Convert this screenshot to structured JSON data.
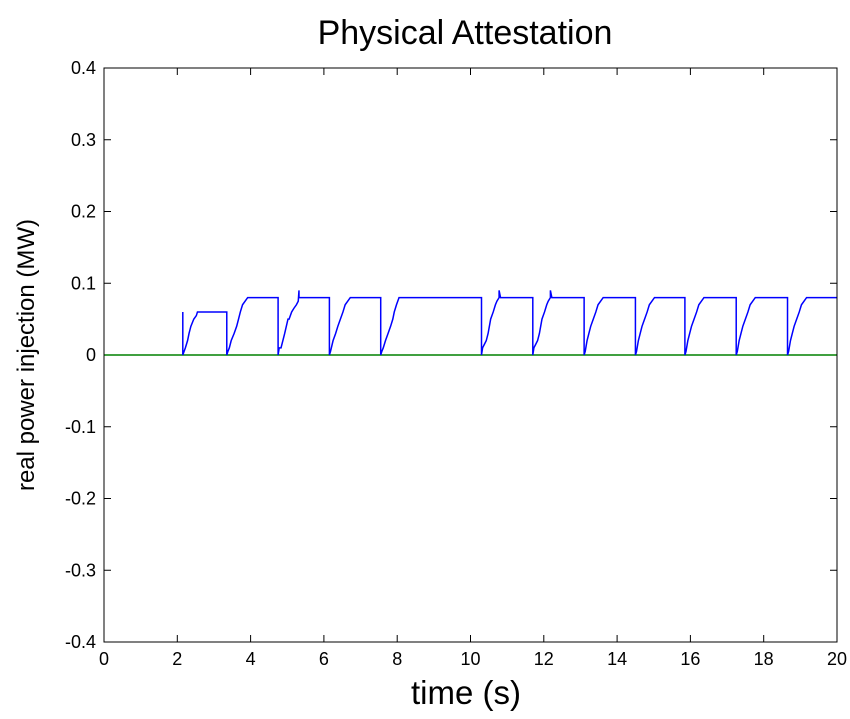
{
  "chart_data": {
    "type": "line",
    "title": "Physical Attestation",
    "xlabel": "time (s)",
    "ylabel": "real power injection (MW)",
    "xlim": [
      0,
      20
    ],
    "ylim": [
      -0.4,
      0.4
    ],
    "grid": false,
    "x_ticks": [
      0,
      2,
      4,
      6,
      8,
      10,
      12,
      14,
      16,
      18,
      20
    ],
    "x_tick_labels": [
      "0",
      "2",
      "4",
      "6",
      "8",
      "10",
      "12",
      "14",
      "16",
      "18",
      "20"
    ],
    "y_ticks": [
      -0.4,
      -0.3,
      -0.2,
      -0.1,
      0,
      0.1,
      0.2,
      0.3,
      0.4
    ],
    "y_tick_labels": [
      "-0.4",
      "-0.3",
      "-0.2",
      "-0.1",
      "0",
      "0.1",
      "0.2",
      "0.3",
      "0.4"
    ],
    "series": [
      {
        "color": "#0000ff",
        "x": [
          2.15,
          2.15,
          2.22,
          2.28,
          2.32,
          2.37,
          2.45,
          2.52,
          2.55,
          3.35,
          3.35,
          3.38,
          3.42,
          3.47,
          3.55,
          3.62,
          3.67,
          3.72,
          3.78,
          3.85,
          3.92,
          3.95,
          4.75,
          4.75,
          4.78,
          4.83,
          4.88,
          4.93,
          5.02,
          5.05,
          5.12,
          5.18,
          5.25,
          5.3,
          5.32,
          5.32,
          5.35,
          6.15,
          6.15,
          6.18,
          6.25,
          6.32,
          6.38,
          6.45,
          6.52,
          6.58,
          6.65,
          6.72,
          7.55,
          7.55,
          7.58,
          7.62,
          7.68,
          7.75,
          7.82,
          7.88,
          7.92,
          7.95,
          7.98,
          8.05,
          10.3,
          10.3,
          10.33,
          10.38,
          10.43,
          10.48,
          10.55,
          10.62,
          10.68,
          10.72,
          10.78,
          10.78,
          10.82,
          11.7,
          11.7,
          11.73,
          11.78,
          11.83,
          11.88,
          11.95,
          12.02,
          12.08,
          12.12,
          12.18,
          12.18,
          12.22,
          13.1,
          13.1,
          13.13,
          13.18,
          13.23,
          13.28,
          13.35,
          13.42,
          13.48,
          13.55,
          13.62,
          14.5,
          14.5,
          14.53,
          14.58,
          14.63,
          14.68,
          14.75,
          14.82,
          14.88,
          14.95,
          15.02,
          15.85,
          15.85,
          15.88,
          15.93,
          15.98,
          16.03,
          16.1,
          16.17,
          16.23,
          16.3,
          16.37,
          17.25,
          17.25,
          17.28,
          17.33,
          17.38,
          17.43,
          17.5,
          17.57,
          17.63,
          17.7,
          17.77,
          18.65,
          18.65,
          18.68,
          18.73,
          18.78,
          18.83,
          18.9,
          18.97,
          19.03,
          19.1,
          19.17,
          20.0
        ],
        "y": [
          0.06,
          0.0,
          0.01,
          0.02,
          0.03,
          0.04,
          0.05,
          0.055,
          0.06,
          0.06,
          0.0,
          0.005,
          0.01,
          0.02,
          0.03,
          0.04,
          0.05,
          0.06,
          0.07,
          0.075,
          0.08,
          0.08,
          0.08,
          0.0,
          0.01,
          0.01,
          0.02,
          0.03,
          0.05,
          0.05,
          0.06,
          0.065,
          0.07,
          0.075,
          0.09,
          0.08,
          0.08,
          0.08,
          0.0,
          0.005,
          0.02,
          0.03,
          0.04,
          0.05,
          0.06,
          0.07,
          0.075,
          0.08,
          0.08,
          0.0,
          0.005,
          0.01,
          0.02,
          0.03,
          0.04,
          0.05,
          0.06,
          0.065,
          0.07,
          0.08,
          0.08,
          0.0,
          0.01,
          0.015,
          0.02,
          0.03,
          0.05,
          0.06,
          0.07,
          0.075,
          0.08,
          0.09,
          0.08,
          0.08,
          0.0,
          0.01,
          0.015,
          0.02,
          0.03,
          0.05,
          0.06,
          0.07,
          0.075,
          0.08,
          0.09,
          0.08,
          0.08,
          0.0,
          0.005,
          0.02,
          0.03,
          0.04,
          0.05,
          0.06,
          0.07,
          0.075,
          0.08,
          0.08,
          0.0,
          0.005,
          0.02,
          0.03,
          0.04,
          0.05,
          0.06,
          0.07,
          0.075,
          0.08,
          0.08,
          0.0,
          0.005,
          0.02,
          0.03,
          0.04,
          0.05,
          0.06,
          0.07,
          0.075,
          0.08,
          0.08,
          0.0,
          0.005,
          0.02,
          0.03,
          0.04,
          0.05,
          0.06,
          0.07,
          0.075,
          0.08,
          0.08,
          0.0,
          0.005,
          0.02,
          0.03,
          0.04,
          0.05,
          0.06,
          0.07,
          0.075,
          0.08,
          0.08
        ]
      },
      {
        "color": "#008000",
        "x": [
          0,
          20
        ],
        "y": [
          0,
          0
        ]
      }
    ]
  }
}
